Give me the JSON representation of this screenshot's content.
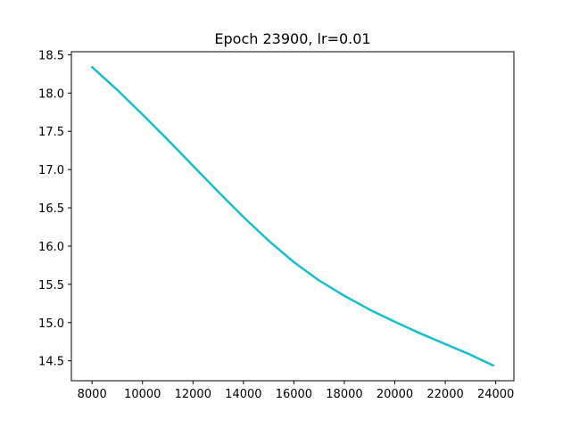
{
  "chart_data": {
    "type": "line",
    "title": "Epoch 23900, lr=0.01",
    "xlabel": "",
    "ylabel": "",
    "xlim": [
      7180,
      24720
    ],
    "ylim": [
      14.24,
      18.54
    ],
    "xticks": [
      8000,
      10000,
      12000,
      14000,
      16000,
      18000,
      20000,
      22000,
      24000
    ],
    "yticks": [
      14.5,
      15.0,
      15.5,
      16.0,
      16.5,
      17.0,
      17.5,
      18.0,
      18.5
    ],
    "ytick_labels": [
      "14.5",
      "15.0",
      "15.5",
      "16.0",
      "16.5",
      "17.0",
      "17.5",
      "18.0",
      "18.5"
    ],
    "grid": false,
    "legend": "none",
    "series": [
      {
        "color": "#17becf",
        "x": [
          8000,
          9000,
          10000,
          11000,
          12000,
          13000,
          14000,
          15000,
          16000,
          17000,
          18000,
          19000,
          20000,
          21000,
          22000,
          23000,
          23900
        ],
        "y": [
          18.34,
          18.04,
          17.72,
          17.39,
          17.05,
          16.71,
          16.38,
          16.07,
          15.79,
          15.55,
          15.35,
          15.17,
          15.01,
          14.86,
          14.72,
          14.58,
          14.44
        ]
      }
    ]
  }
}
